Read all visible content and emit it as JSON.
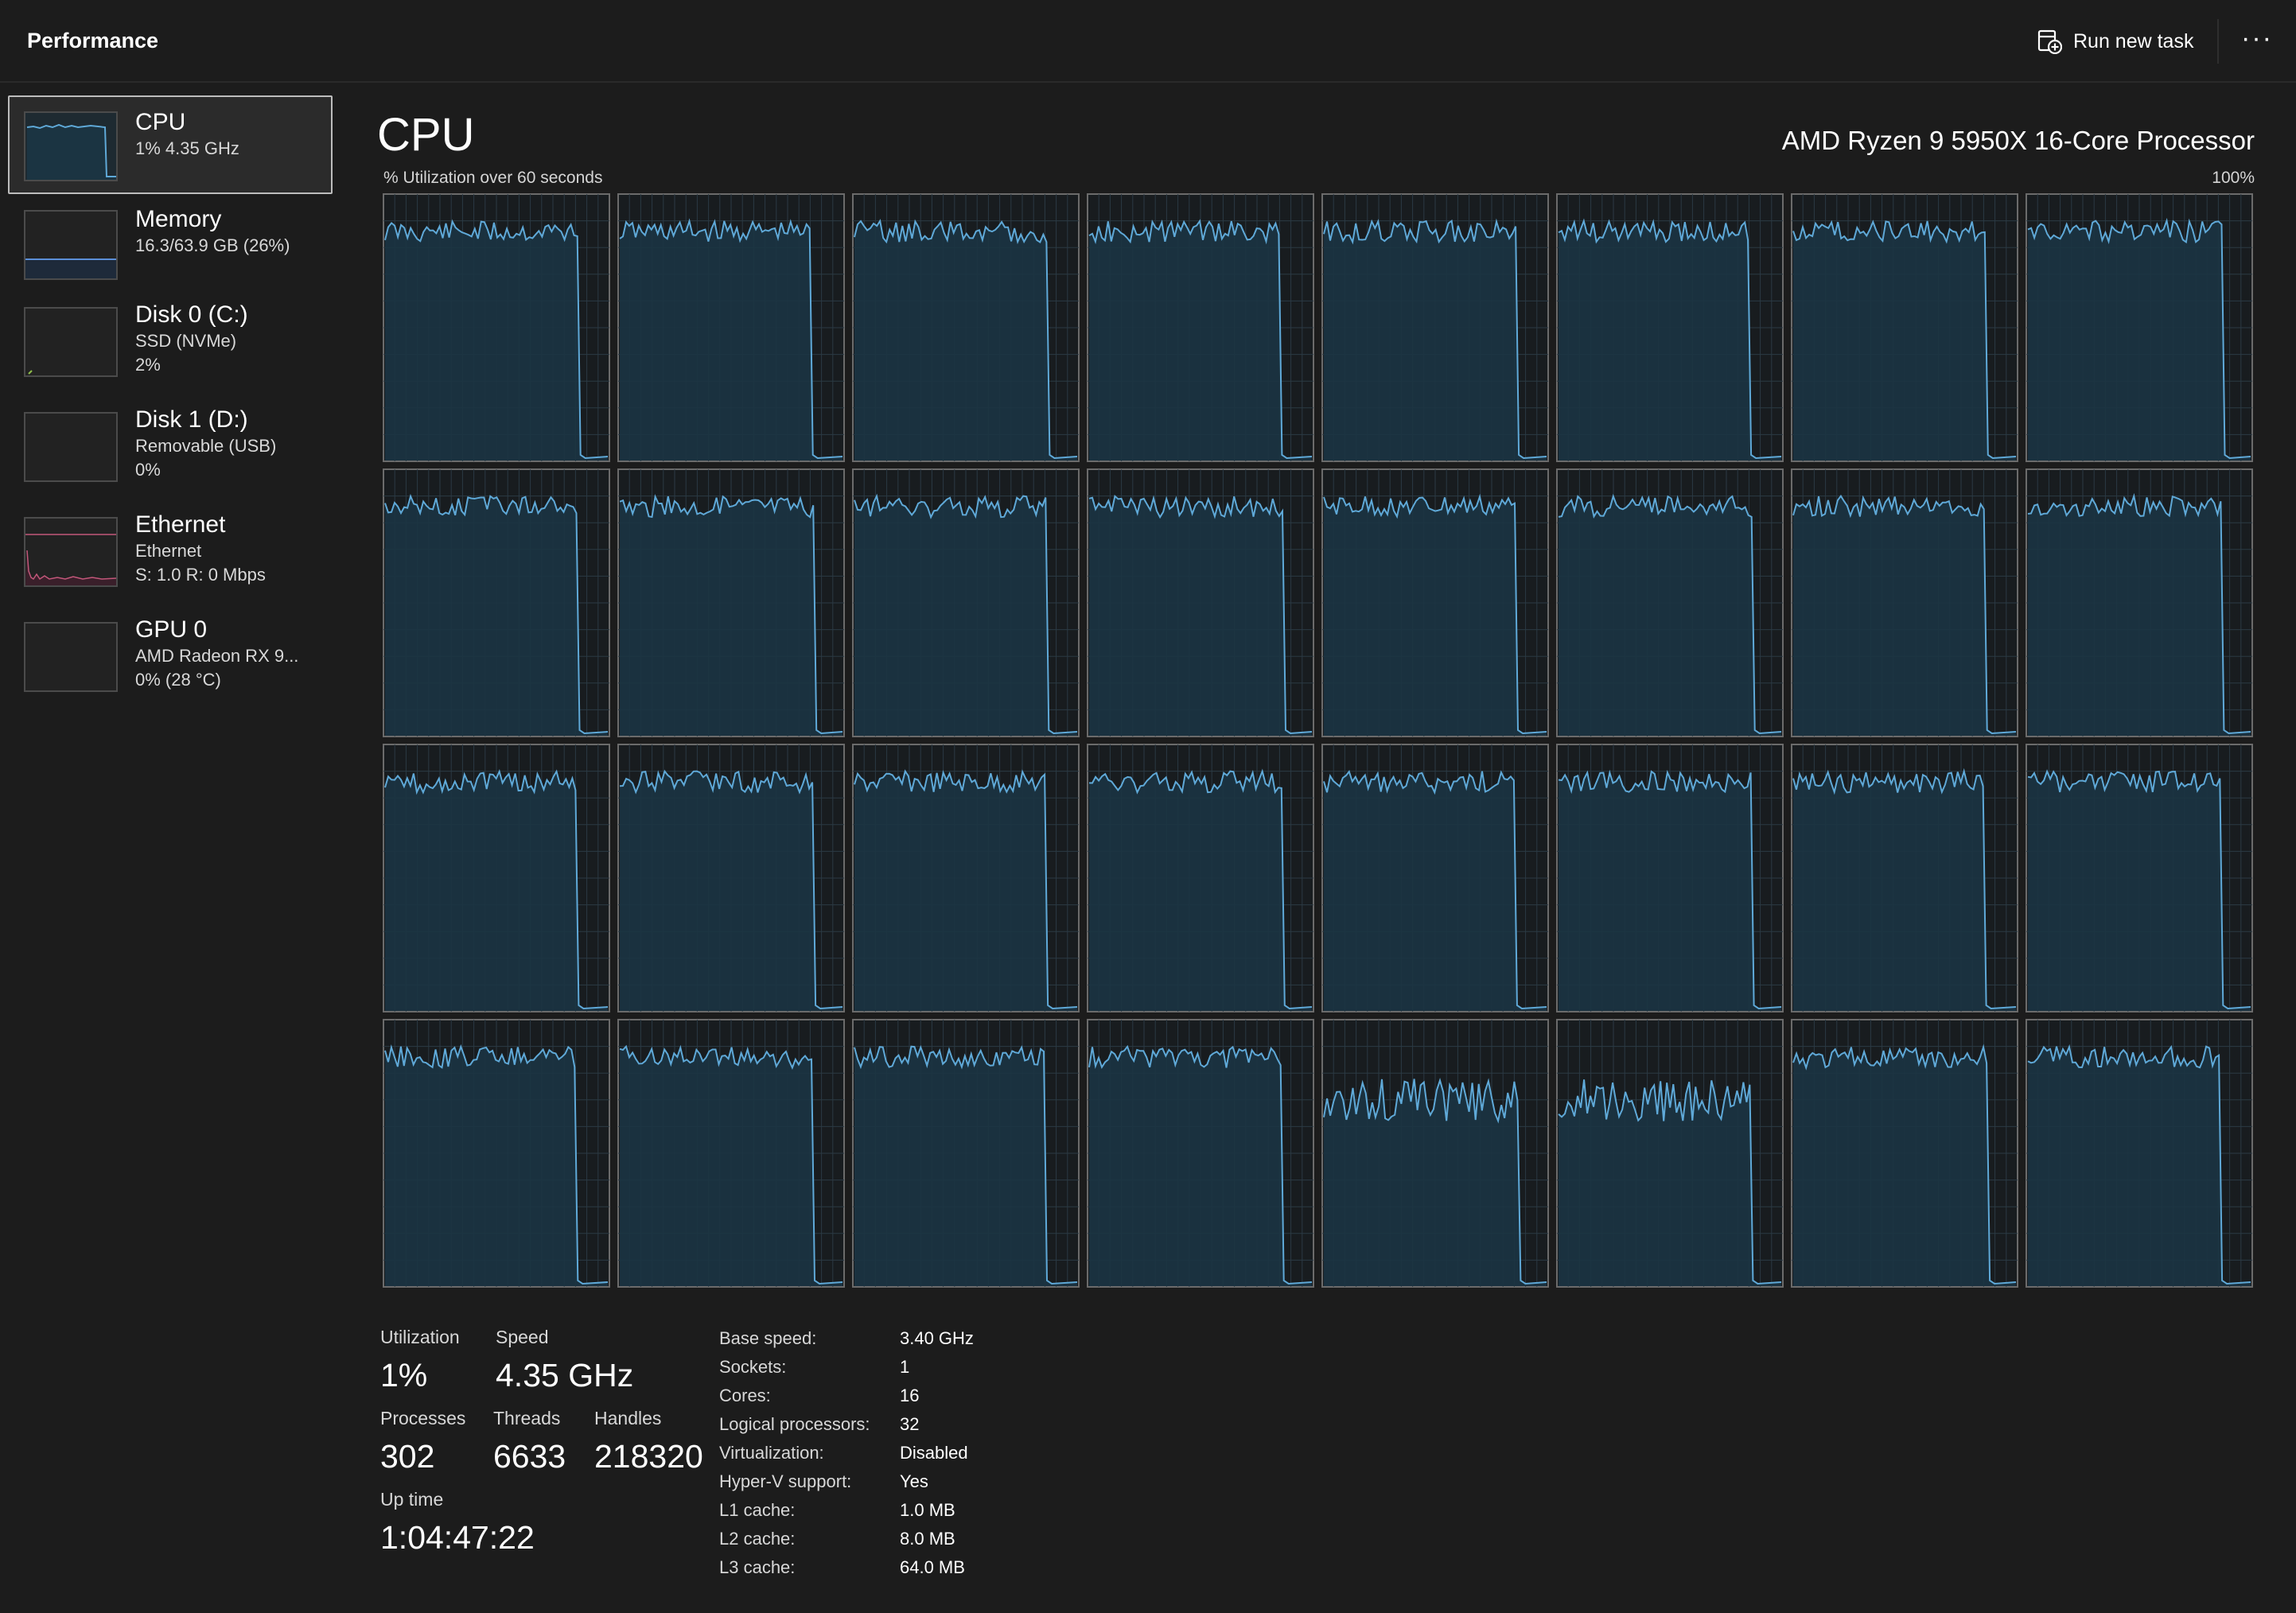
{
  "app": {
    "title": "Performance"
  },
  "toolbar": {
    "run_new_task": "Run new task",
    "more": "···"
  },
  "sidebar": {
    "items": [
      {
        "label": "CPU",
        "sub1": "1% 4.35 GHz",
        "sub2": ""
      },
      {
        "label": "Memory",
        "sub1": "16.3/63.9 GB (26%)",
        "sub2": ""
      },
      {
        "label": "Disk 0 (C:)",
        "sub1": "SSD (NVMe)",
        "sub2": "2%"
      },
      {
        "label": "Disk 1 (D:)",
        "sub1": "Removable (USB)",
        "sub2": "0%"
      },
      {
        "label": "Ethernet",
        "sub1": "Ethernet",
        "sub2": "S: 1.0 R: 0 Mbps"
      },
      {
        "label": "GPU 0",
        "sub1": "AMD Radeon RX 9...",
        "sub2": "0% (28 °C)"
      }
    ]
  },
  "main": {
    "title": "CPU",
    "processor": "AMD Ryzen 9 5950X 16-Core Processor",
    "graph_label": "% Utilization over 60 seconds",
    "graph_max": "100%",
    "logical_processor_count": 32
  },
  "stats": {
    "utilization_label": "Utilization",
    "utilization": "1%",
    "speed_label": "Speed",
    "speed": "4.35 GHz",
    "processes_label": "Processes",
    "processes": "302",
    "threads_label": "Threads",
    "threads": "6633",
    "handles_label": "Handles",
    "handles": "218320",
    "uptime_label": "Up time",
    "uptime": "1:04:47:22"
  },
  "details": [
    {
      "label": "Base speed:",
      "value": "3.40 GHz"
    },
    {
      "label": "Sockets:",
      "value": "1"
    },
    {
      "label": "Cores:",
      "value": "16"
    },
    {
      "label": "Logical processors:",
      "value": "32"
    },
    {
      "label": "Virtualization:",
      "value": "Disabled"
    },
    {
      "label": "Hyper-V support:",
      "value": "Yes"
    },
    {
      "label": "L1 cache:",
      "value": "1.0 MB"
    },
    {
      "label": "L2 cache:",
      "value": "8.0 MB"
    },
    {
      "label": "L3 cache:",
      "value": "64.0 MB"
    }
  ],
  "colors": {
    "background": "#1c1c1c",
    "graph_line": "#5fa9d8",
    "graph_fill": "#1b3442",
    "graph_grid": "#2b3a44",
    "graph_border": "#6b6b6b",
    "ethernet_line": "#c2577a"
  },
  "icons": {
    "run_task": "run-task-icon",
    "more": "more-options-icon"
  }
}
